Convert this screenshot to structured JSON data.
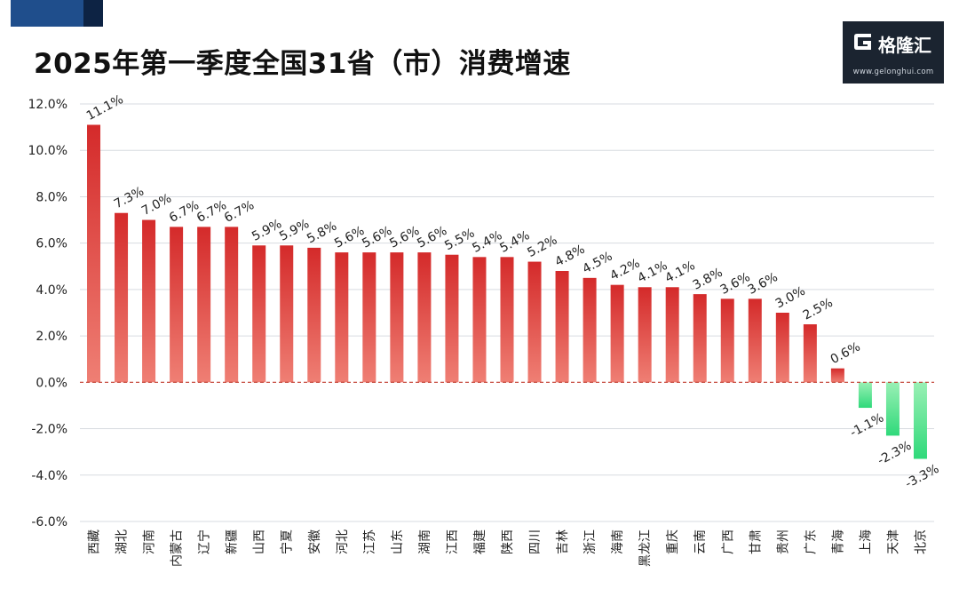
{
  "title": "2025年第一季度全国31省（市）消费增速",
  "logo": {
    "name": "格隆汇",
    "url": "www.gelonghui.com",
    "icon": "gelonghui-logo-icon"
  },
  "colors": {
    "positive_top": "#d42a2a",
    "positive_bottom": "#ef7f74",
    "negative_top": "#9af0b5",
    "negative_bottom": "#2fd97a",
    "zero_line": "#c0392b"
  },
  "chart_data": {
    "type": "bar",
    "title": "2025年第一季度全国31省（市）消费增速",
    "xlabel": "",
    "ylabel": "",
    "ylim": [
      -6,
      12
    ],
    "y_ticks": [
      "-6.0%",
      "-4.0%",
      "-2.0%",
      "0.0%",
      "2.0%",
      "4.0%",
      "6.0%",
      "8.0%",
      "10.0%",
      "12.0%"
    ],
    "grid": true,
    "legend": "none",
    "categories": [
      "西藏",
      "湖北",
      "河南",
      "内蒙古",
      "辽宁",
      "新疆",
      "山西",
      "宁夏",
      "安徽",
      "河北",
      "江苏",
      "山东",
      "湖南",
      "江西",
      "福建",
      "陕西",
      "四川",
      "吉林",
      "浙江",
      "海南",
      "黑龙江",
      "重庆",
      "云南",
      "广西",
      "甘肃",
      "贵州",
      "广东",
      "青海",
      "上海",
      "天津",
      "北京"
    ],
    "values": [
      11.1,
      7.3,
      7.0,
      6.7,
      6.7,
      6.7,
      5.9,
      5.9,
      5.8,
      5.6,
      5.6,
      5.6,
      5.6,
      5.5,
      5.4,
      5.4,
      5.2,
      4.8,
      4.5,
      4.2,
      4.1,
      4.1,
      3.8,
      3.6,
      3.6,
      3.0,
      2.5,
      0.6,
      -1.1,
      -2.3,
      -3.3
    ],
    "labels": [
      "11.1%",
      "7.3%",
      "7.0%",
      "6.7%",
      "6.7%",
      "6.7%",
      "5.9%",
      "5.9%",
      "5.8%",
      "5.6%",
      "5.6%",
      "5.6%",
      "5.6%",
      "5.5%",
      "5.4%",
      "5.4%",
      "5.2%",
      "4.8%",
      "4.5%",
      "4.2%",
      "4.1%",
      "4.1%",
      "3.8%",
      "3.6%",
      "3.6%",
      "3.0%",
      "2.5%",
      "0.6%",
      "-1.1%",
      "-2.3%",
      "-3.3%"
    ]
  }
}
